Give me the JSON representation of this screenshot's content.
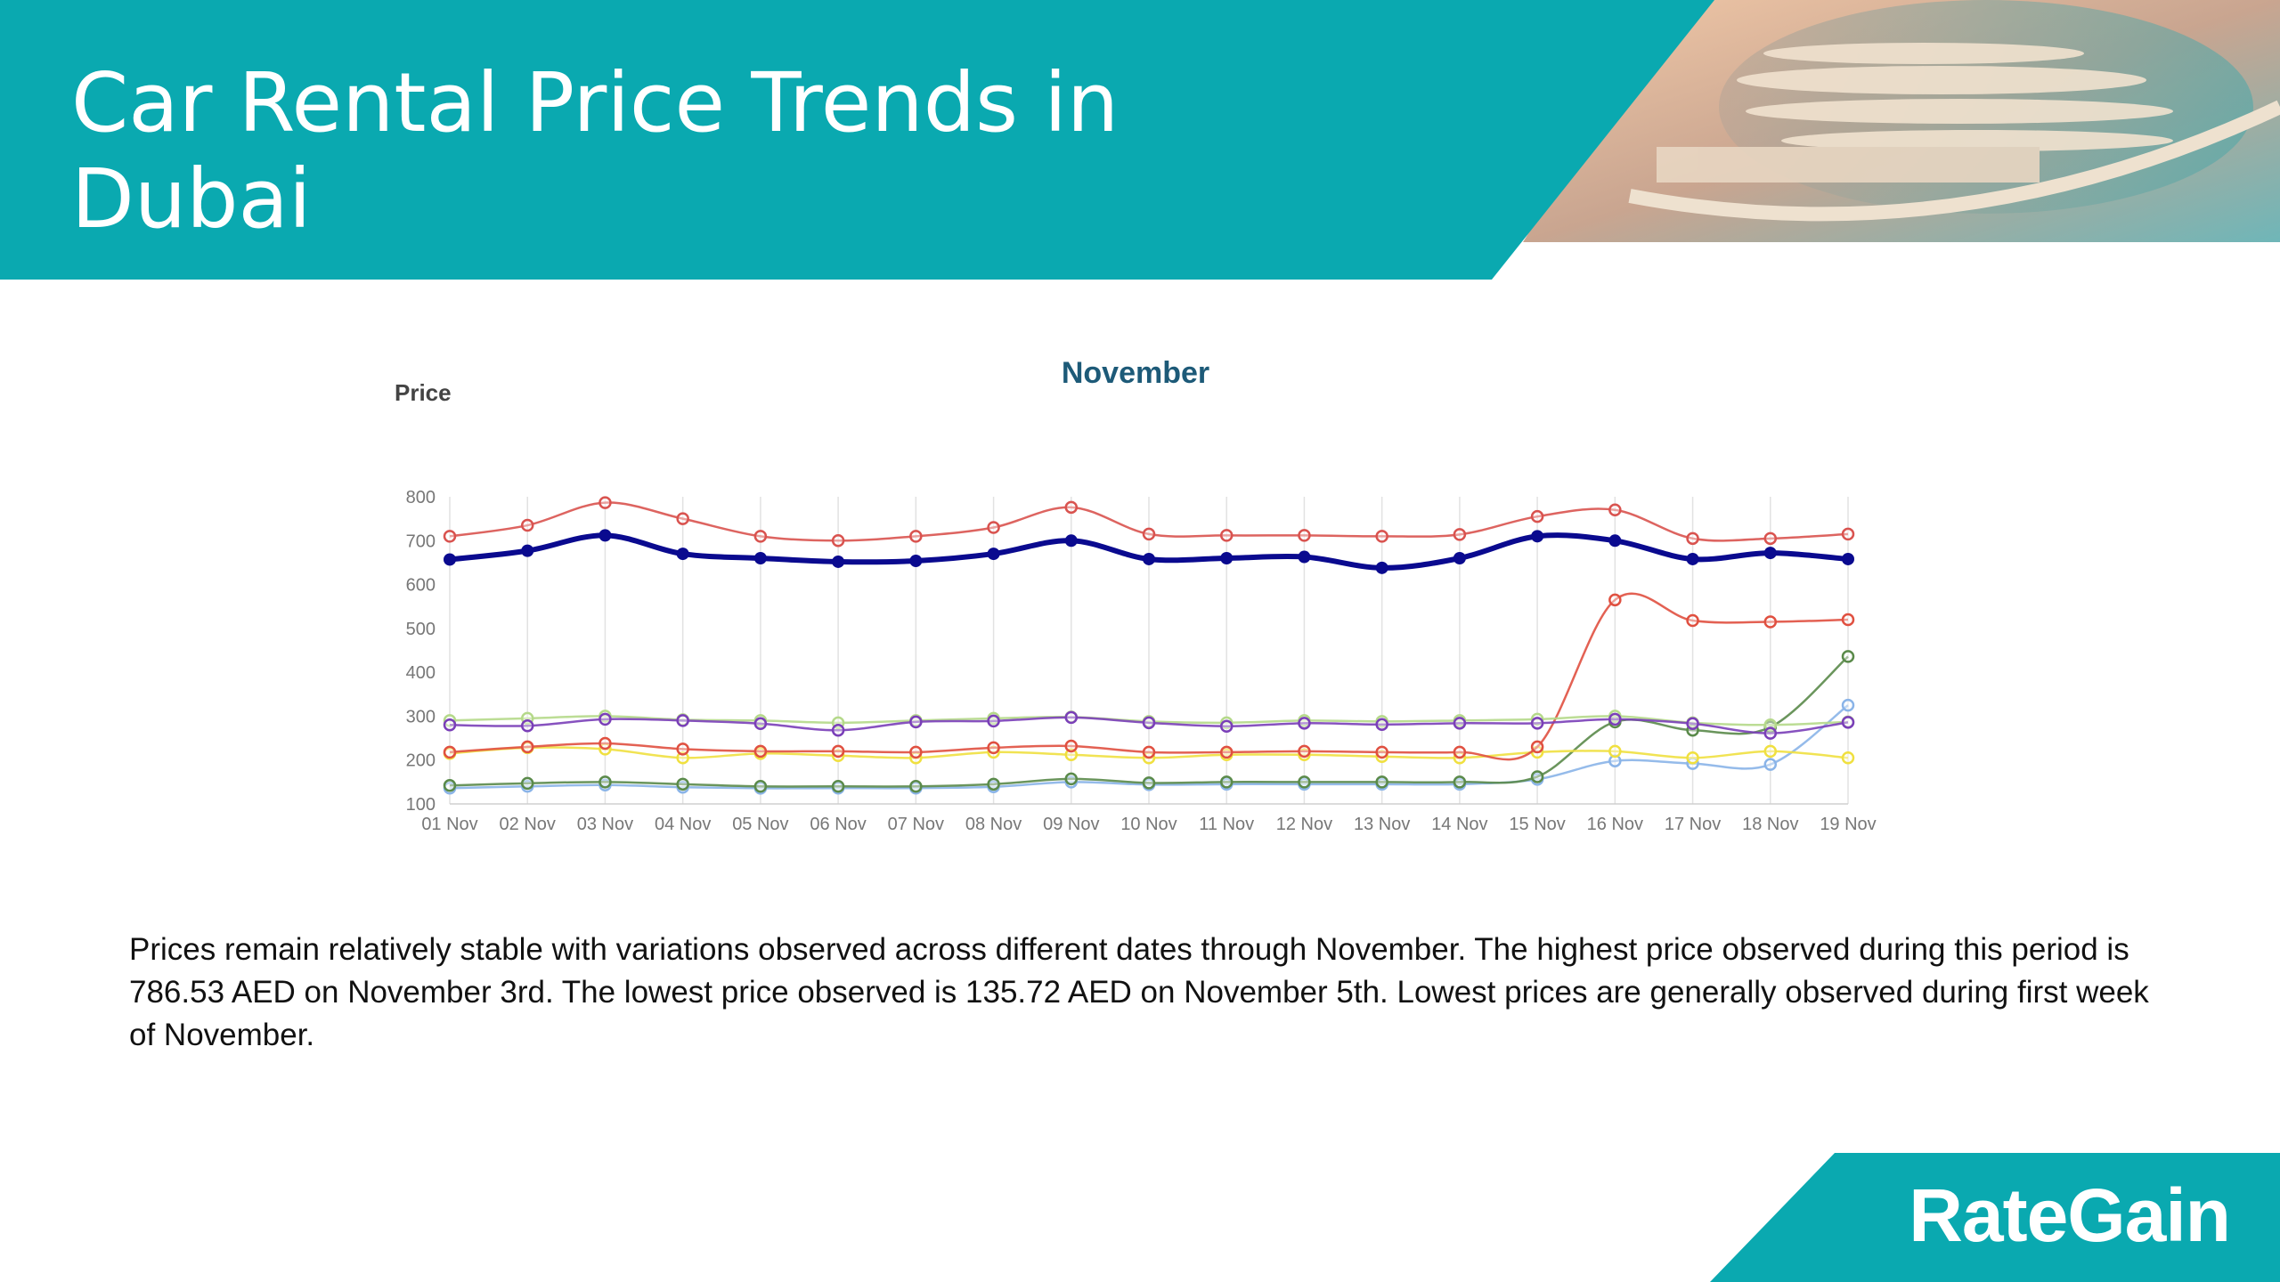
{
  "header": {
    "title": "Car Rental Price Trends in Dubai",
    "accent_color": "#0aa9b0"
  },
  "summary": {
    "text": "Prices remain relatively stable with variations observed across different dates through November. The highest price observed during this period is 786.53 AED on November 3rd. The lowest price observed is 135.72 AED on November 5th. Lowest prices are generally observed during first week of November."
  },
  "brand": {
    "logo_text": "RateGain"
  },
  "chart_data": {
    "type": "line",
    "title": "November",
    "xlabel": "",
    "ylabel": "Price",
    "ylim": [
      100,
      800
    ],
    "yticks": [
      100,
      200,
      300,
      400,
      500,
      600,
      700,
      800
    ],
    "grid": "vertical",
    "categories": [
      "01 Nov",
      "02 Nov",
      "03 Nov",
      "04 Nov",
      "05 Nov",
      "06 Nov",
      "07 Nov",
      "08 Nov",
      "09 Nov",
      "10 Nov",
      "11 Nov",
      "12 Nov",
      "13 Nov",
      "14 Nov",
      "15 Nov",
      "16 Nov",
      "17 Nov",
      "18 Nov",
      "19 Nov"
    ],
    "series": [
      {
        "name": "red-top",
        "color": "#d9534f",
        "bold": false,
        "values": [
          710,
          735,
          786.53,
          750,
          710,
          700,
          710,
          730,
          776,
          715,
          712,
          712,
          710,
          714,
          755,
          770,
          705,
          705,
          715
        ]
      },
      {
        "name": "navy",
        "color": "#0a0a8f",
        "bold": true,
        "values": [
          657,
          677,
          712,
          670,
          660,
          652,
          654,
          670,
          700,
          658,
          660,
          663,
          638,
          660,
          710,
          700,
          658,
          672,
          658
        ]
      },
      {
        "name": "green-light",
        "color": "#b5d98a",
        "bold": false,
        "values": [
          290,
          295,
          300,
          292,
          290,
          285,
          290,
          295,
          298,
          288,
          285,
          290,
          288,
          290,
          293,
          300,
          285,
          280,
          287
        ]
      },
      {
        "name": "purple",
        "color": "#7a3fb8",
        "bold": false,
        "values": [
          280,
          278,
          293,
          290,
          283,
          268,
          287,
          289,
          297,
          285,
          277,
          284,
          281,
          284,
          284,
          293,
          283,
          261,
          286
        ]
      },
      {
        "name": "orange-red",
        "color": "#e05040",
        "bold": false,
        "values": [
          218,
          230,
          238,
          225,
          220,
          220,
          218,
          228,
          232,
          218,
          218,
          220,
          218,
          218,
          230,
          565,
          518,
          515,
          520
        ]
      },
      {
        "name": "yellow",
        "color": "#f0e040",
        "bold": false,
        "values": [
          215,
          228,
          225,
          205,
          215,
          210,
          205,
          218,
          212,
          205,
          212,
          212,
          208,
          205,
          218,
          220,
          205,
          220,
          205
        ]
      },
      {
        "name": "dark-green",
        "color": "#5a8a4a",
        "bold": false,
        "values": [
          142,
          147,
          150,
          145,
          140,
          140,
          140,
          145,
          157,
          148,
          150,
          150,
          150,
          150,
          162,
          287,
          268,
          275,
          436
        ]
      },
      {
        "name": "light-blue",
        "color": "#8ab4e8",
        "bold": false,
        "values": [
          136,
          140,
          143,
          138,
          135.72,
          136,
          136,
          139,
          150,
          144,
          145,
          145,
          145,
          145,
          156,
          198,
          192,
          190,
          325
        ]
      }
    ]
  }
}
